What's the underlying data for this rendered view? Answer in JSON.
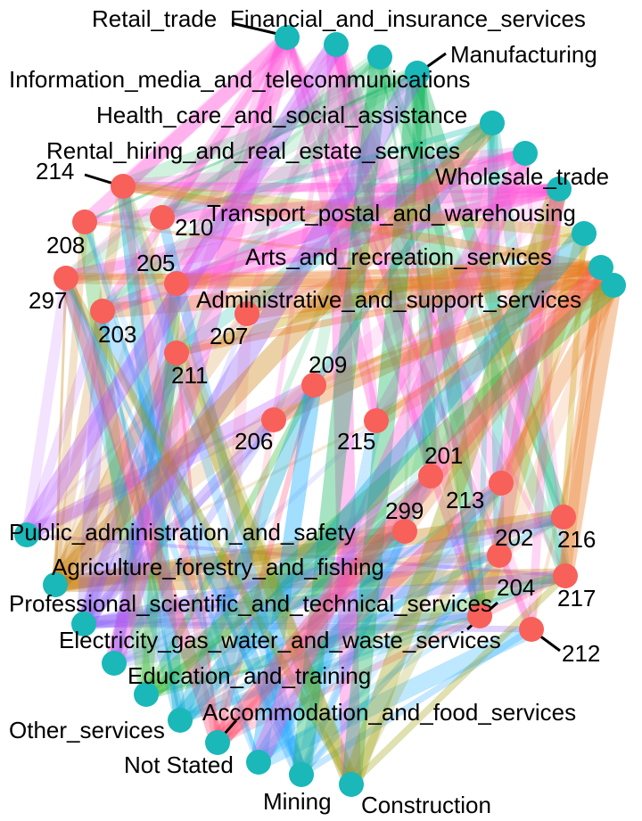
{
  "diagram": {
    "type": "network",
    "industry_nodes": [
      {
        "id": "retail",
        "label": "Retail_trade",
        "color": "#FF4FD8"
      },
      {
        "id": "financial",
        "label": "Financial_and_insurance_services",
        "color": "#FF4FD8"
      },
      {
        "id": "manufacturing",
        "label": "Manufacturing",
        "color": "#00B050"
      },
      {
        "id": "info",
        "label": "Information_media_and_telecommunications",
        "color": "#00B050"
      },
      {
        "id": "health",
        "label": "Health_care_and_social_assistance",
        "color": "#00B8A9"
      },
      {
        "id": "rental",
        "label": "Rental_hiring_and_real_estate_services",
        "color": "#FF4FD8"
      },
      {
        "id": "wholesale",
        "label": "Wholesale_trade",
        "color": "#FF4FD8"
      },
      {
        "id": "transport",
        "label": "Transport_postal_and_warehousing",
        "color": "#C8A000"
      },
      {
        "id": "arts",
        "label": "Arts_and_recreation_services",
        "color": "#E8761C"
      },
      {
        "id": "admin",
        "label": "Administrative_and_support_services",
        "color": "#E8761C"
      },
      {
        "id": "public",
        "label": "Public_administration_and_safety",
        "color": "#B34FFF"
      },
      {
        "id": "agri",
        "label": "Agriculture_forestry_and_fishing",
        "color": "#C87800"
      },
      {
        "id": "prof",
        "label": "Professional_scientific_and_technical_services",
        "color": "#8B5CF6"
      },
      {
        "id": "elec",
        "label": "Electricity_gas_water_and_waste_services",
        "color": "#5B5BFF"
      },
      {
        "id": "edu",
        "label": "Education_and_training",
        "color": "#2DB52D"
      },
      {
        "id": "other",
        "label": "Other_services",
        "color": "#00A6D6"
      },
      {
        "id": "accom",
        "label": "Accommodation_and_food_services",
        "color": "#FF4A6E"
      },
      {
        "id": "notstated",
        "label": "Not Stated",
        "color": "#00A6FF"
      },
      {
        "id": "mining",
        "label": "Mining",
        "color": "#1AA3FF"
      },
      {
        "id": "construction",
        "label": "Construction",
        "color": "#9A9A00"
      }
    ],
    "region_nodes": [
      "214",
      "210",
      "208",
      "205",
      "297",
      "203",
      "207",
      "211",
      "209",
      "206",
      "215",
      "201",
      "213",
      "299",
      "202",
      "216",
      "204",
      "217",
      "212"
    ],
    "colors": {
      "industry_node": "#1AB8B8",
      "region_node": "#F8605A"
    }
  }
}
